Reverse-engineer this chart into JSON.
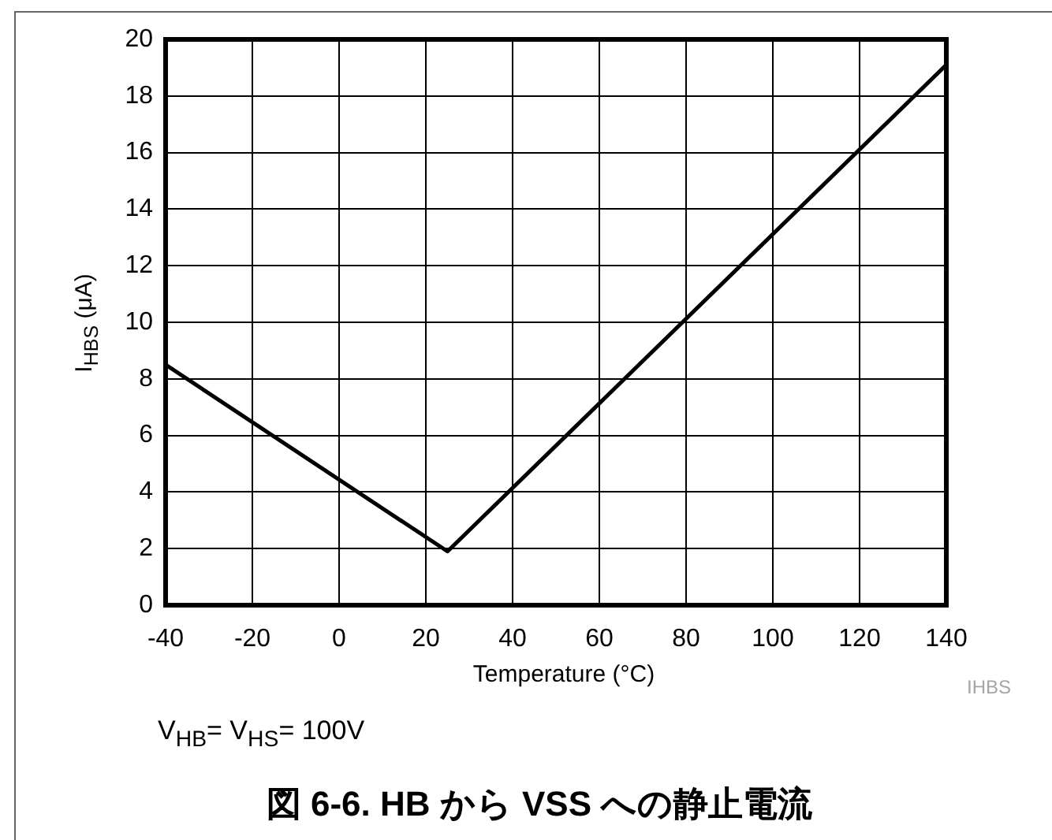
{
  "chart_data": {
    "type": "line",
    "title": "図 6-6. HB から VSS への静止電流",
    "xlabel": "Temperature (°C)",
    "ylabel": "I$_{HBS}$ (μA)",
    "annotations": [
      "IHBS",
      "V$_{HB}$= V$_{HS}$= 100V"
    ],
    "x": [
      -40,
      25,
      140
    ],
    "series": [
      {
        "color": "#000000",
        "values": [
          8.5,
          1.9,
          19.1
        ]
      }
    ],
    "xlim": [
      -40,
      140
    ],
    "xticks": [
      -40,
      -20,
      0,
      20,
      40,
      60,
      80,
      100,
      120,
      140
    ],
    "ylim": [
      0,
      20
    ],
    "yticks": [
      0,
      2,
      4,
      6,
      8,
      10,
      12,
      14,
      16,
      18,
      20
    ],
    "grid": true,
    "legend": false,
    "marker": "none",
    "line_style": "solid"
  }
}
